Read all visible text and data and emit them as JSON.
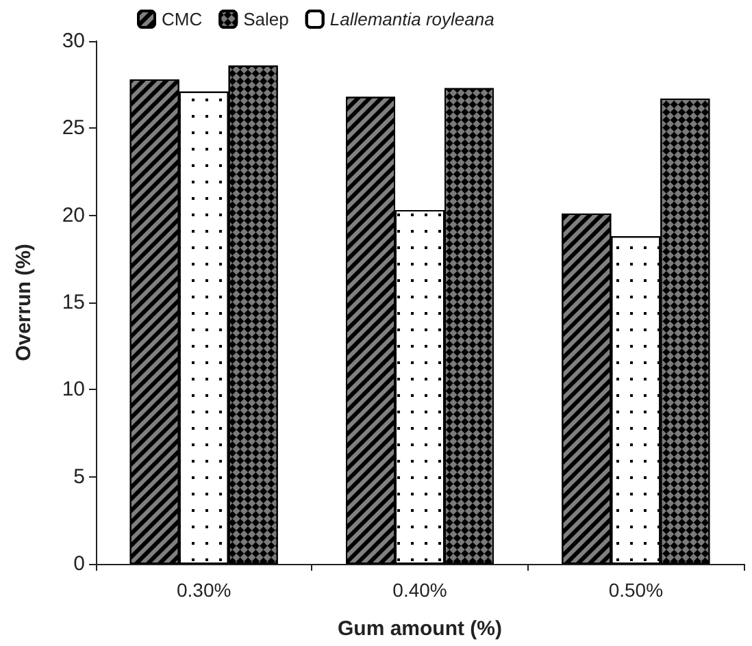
{
  "chart_data": {
    "type": "bar",
    "xlabel": "Gum amount (%)",
    "ylabel": "Overrun (%)",
    "categories": [
      "0.30%",
      "0.40%",
      "0.50%"
    ],
    "series": [
      {
        "name": "CMC",
        "color": "#808080",
        "values": [
          27.8,
          26.8,
          20.1
        ]
      },
      {
        "name": "Lallemantia royleana",
        "color": "#ffffff",
        "values": [
          27.1,
          20.3,
          18.8
        ]
      },
      {
        "name": "Salep",
        "color": "#7a7a7a",
        "values": [
          28.6,
          27.3,
          26.7
        ]
      }
    ],
    "ylim": [
      0,
      30
    ],
    "yticks": [
      0,
      5,
      10,
      15,
      20,
      25,
      30
    ],
    "grid": false,
    "legend": "top"
  }
}
